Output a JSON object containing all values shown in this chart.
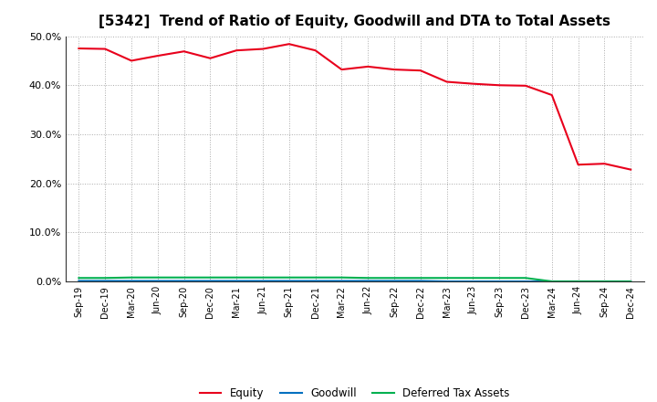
{
  "title": "[5342]  Trend of Ratio of Equity, Goodwill and DTA to Total Assets",
  "x_labels": [
    "Sep-19",
    "Dec-19",
    "Mar-20",
    "Jun-20",
    "Sep-20",
    "Dec-20",
    "Mar-21",
    "Jun-21",
    "Sep-21",
    "Dec-21",
    "Mar-22",
    "Jun-22",
    "Sep-22",
    "Dec-22",
    "Mar-23",
    "Jun-23",
    "Sep-23",
    "Dec-23",
    "Mar-24",
    "Jun-24",
    "Sep-24",
    "Dec-24"
  ],
  "equity": [
    0.475,
    0.474,
    0.45,
    0.46,
    0.469,
    0.455,
    0.471,
    0.474,
    0.484,
    0.471,
    0.432,
    0.438,
    0.432,
    0.43,
    0.407,
    0.403,
    0.4,
    0.399,
    0.38,
    0.238,
    0.24,
    0.228
  ],
  "goodwill": [
    0.001,
    0.001,
    0.001,
    0.001,
    0.001,
    0.001,
    0.001,
    0.001,
    0.001,
    0.001,
    0.001,
    0.001,
    0.001,
    0.001,
    0.0,
    0.0,
    0.0,
    0.0,
    0.0,
    0.0,
    0.0,
    0.0
  ],
  "dta": [
    0.007,
    0.007,
    0.008,
    0.008,
    0.008,
    0.008,
    0.008,
    0.008,
    0.008,
    0.008,
    0.008,
    0.007,
    0.007,
    0.007,
    0.007,
    0.007,
    0.007,
    0.007,
    0.0,
    0.0,
    0.0,
    0.0
  ],
  "equity_color": "#e8001c",
  "goodwill_color": "#0070c0",
  "dta_color": "#00b050",
  "ylim": [
    0.0,
    0.5
  ],
  "yticks": [
    0.0,
    0.1,
    0.2,
    0.3,
    0.4,
    0.5
  ],
  "background_color": "#ffffff",
  "plot_bg_color": "#ffffff",
  "grid_color": "#aaaaaa",
  "title_fontsize": 11,
  "legend_labels": [
    "Equity",
    "Goodwill",
    "Deferred Tax Assets"
  ]
}
